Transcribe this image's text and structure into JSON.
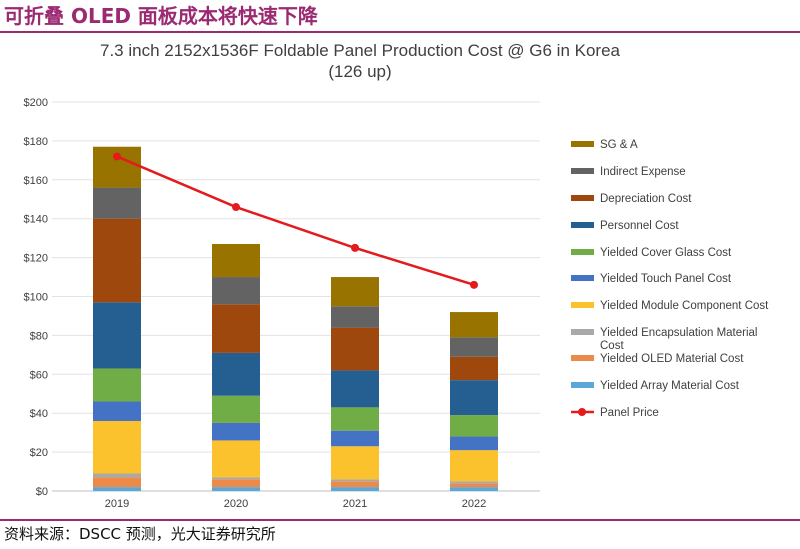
{
  "headline": "可折叠 OLED 面板成本将快速下降",
  "footer": "资料来源：DSCC 预测，光大证券研究所",
  "chart_data": {
    "type": "bar",
    "stacked": true,
    "title": "7.3 inch 2152x1536F Foldable Panel Production Cost @ G6  in Korea",
    "subtitle": "(126 up)",
    "categories": [
      "2019",
      "2020",
      "2021",
      "2022"
    ],
    "ylim": [
      0,
      200
    ],
    "y_ticks": [
      "$0",
      "$20",
      "$40",
      "$60",
      "$80",
      "$100",
      "$120",
      "$140",
      "$160",
      "$180",
      "$200"
    ],
    "grid": true,
    "legend_position": "right",
    "series": [
      {
        "name": "Yielded Array Material Cost",
        "color": "#5ba7d8",
        "values": [
          2,
          2,
          2,
          2
        ]
      },
      {
        "name": "Yielded OLED Material Cost",
        "color": "#ec8a4a",
        "values": [
          5,
          4,
          3,
          2
        ]
      },
      {
        "name": "Yielded Encapsulation Material Cost",
        "color": "#a9a9a9",
        "values": [
          2,
          1,
          1,
          1
        ]
      },
      {
        "name": "Yielded Module Component Cost",
        "color": "#fbc22d",
        "values": [
          27,
          19,
          17,
          16
        ]
      },
      {
        "name": "Yielded Touch Panel Cost",
        "color": "#4472c4",
        "values": [
          10,
          9,
          8,
          7
        ]
      },
      {
        "name": "Yielded Cover Glass Cost",
        "color": "#70ad47",
        "values": [
          17,
          14,
          12,
          11
        ]
      },
      {
        "name": "Personnel Cost",
        "color": "#255e91",
        "values": [
          34,
          22,
          19,
          18
        ]
      },
      {
        "name": "Depreciation Cost",
        "color": "#9e480e",
        "values": [
          43,
          25,
          22,
          12
        ]
      },
      {
        "name": "Indirect Expense",
        "color": "#636363",
        "values": [
          16,
          14,
          11,
          10
        ]
      },
      {
        "name": "SG & A",
        "color": "#997300",
        "values": [
          21,
          17,
          15,
          13
        ]
      }
    ],
    "line_series": {
      "name": "Panel Price",
      "color": "#e41a1c",
      "values": [
        172,
        146,
        125,
        106
      ]
    },
    "legend_order": [
      "SG & A",
      "Indirect Expense",
      "Depreciation Cost",
      "Personnel Cost",
      "Yielded Cover Glass Cost",
      "Yielded Touch Panel Cost",
      "Yielded Module Component Cost",
      "Yielded Encapsulation Material Cost",
      "Yielded OLED Material Cost",
      "Yielded Array Material Cost",
      "Panel Price"
    ]
  }
}
